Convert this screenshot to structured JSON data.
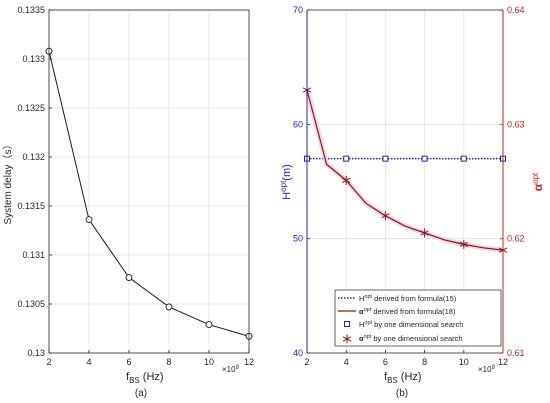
{
  "chart_data": [
    {
      "type": "line",
      "panel_label": "(a)",
      "xlabel_main": "f",
      "xlabel_sub": "BS",
      "xlabel_unit": "(Hz)",
      "x_exponent_base": "×10",
      "x_exponent_power": "9",
      "ylabel": "System delay（s）",
      "xlim": [
        2,
        12
      ],
      "ylim": [
        0.13,
        0.1335
      ],
      "xticks": [
        "2",
        "4",
        "6",
        "8",
        "10",
        "12"
      ],
      "yticks": [
        "0.13",
        "0.1305",
        "0.131",
        "0.1315",
        "0.132",
        "0.1325",
        "0.133",
        "0.1335"
      ],
      "grid": true,
      "series": [
        {
          "x": [
            2,
            4,
            6,
            8,
            10,
            12
          ],
          "y": [
            0.13308,
            0.13136,
            0.13077,
            0.13047,
            0.13029,
            0.13017
          ],
          "line_color": "#1a1a1a",
          "marker": "circle"
        }
      ]
    },
    {
      "type": "line",
      "panel_label": "(b)",
      "xlabel_main": "f",
      "xlabel_sub": "BS",
      "xlabel_unit": "(Hz)",
      "x_exponent_base": "×10",
      "x_exponent_power": "9",
      "ylabel_left_main": "H",
      "ylabel_left_sup": "opt",
      "ylabel_left_unit": "(m)",
      "ylabel_right_main": "α",
      "ylabel_right_sup": "opt",
      "xlim": [
        2,
        12
      ],
      "ylim_left": [
        40,
        70
      ],
      "ylim_right": [
        0.61,
        0.64
      ],
      "xticks": [
        "2",
        "4",
        "6",
        "8",
        "10",
        "12"
      ],
      "yticks_left": [
        "40",
        "50",
        "60",
        "70"
      ],
      "yticks_right": [
        "0.61",
        "0.62",
        "0.63",
        "0.64"
      ],
      "grid": true,
      "left_axis_color": "#2222cc",
      "right_axis_color": "#cc2222",
      "legend_position": "bottom-right",
      "series": [
        {
          "legend_main": "H",
          "legend_sup": "opt",
          "legend_rest": " derived from formula(15)",
          "axis": "left",
          "x": [
            2,
            4,
            6,
            8,
            10,
            12
          ],
          "y": [
            57,
            57,
            57,
            57,
            57,
            57
          ],
          "style": "dotted-line",
          "color": "#1f1fd0"
        },
        {
          "legend_main": "α",
          "legend_sup": "opt",
          "legend_rest": " derived from formula(18)",
          "axis": "right",
          "x": [
            2,
            3,
            4,
            5,
            6,
            7,
            8,
            9,
            10,
            11,
            12
          ],
          "y": [
            0.633,
            0.6265,
            0.6251,
            0.6231,
            0.622,
            0.6211,
            0.6205,
            0.6199,
            0.6195,
            0.6192,
            0.619
          ],
          "style": "solid-line",
          "color": "#8b1a0e"
        },
        {
          "legend_main": "H",
          "legend_sup": "opt",
          "legend_rest": " by one dimensional search",
          "axis": "left",
          "x": [
            2,
            4,
            6,
            8,
            10,
            12
          ],
          "y": [
            57,
            57,
            57,
            57,
            57,
            57
          ],
          "style": "square-markers",
          "color": "#1f1fd0"
        },
        {
          "legend_main": "α",
          "legend_sup": "opt",
          "legend_rest": " by one dimensional search",
          "axis": "right",
          "x": [
            2,
            4,
            6,
            8,
            10,
            12
          ],
          "y": [
            0.633,
            0.6251,
            0.622,
            0.6205,
            0.6195,
            0.619
          ],
          "style": "asterisk-markers",
          "color": "#8b1a0e"
        }
      ]
    }
  ]
}
